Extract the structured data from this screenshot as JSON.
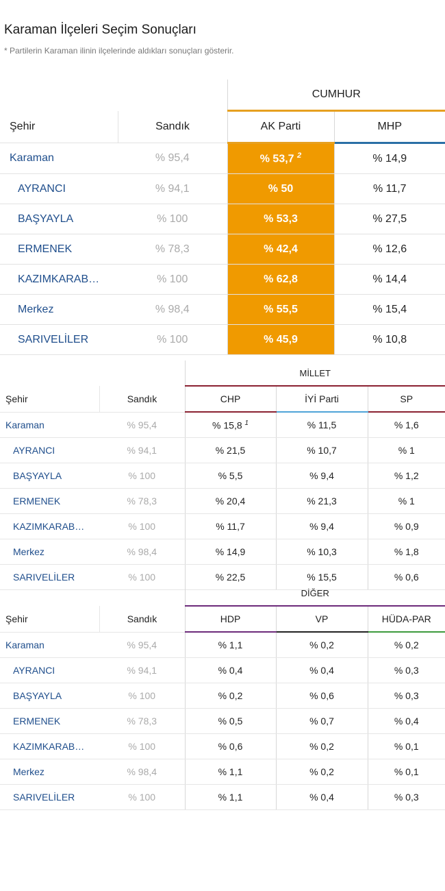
{
  "title": "Karaman İlçeleri Seçim Sonuçları",
  "subtitle": "* Partilerin Karaman ilinin ilçelerinde aldıkları sonuçları gösterir.",
  "colors": {
    "cumhur": "#e6a020",
    "akparti_bg": "#f09a00",
    "mhp": "#2a6fa6",
    "millet": "#8a2131",
    "chp": "#8a2131",
    "iyi": "#4ea3d8",
    "sp": "#8a2131",
    "diger": "#6c2a7a",
    "hdp": "#6c2a7a",
    "vp": "#222222",
    "hudapar": "#3c9a3c"
  },
  "rows": [
    {
      "city": "Karaman",
      "box": "% 95,4"
    },
    {
      "city": "AYRANCI",
      "box": "% 94,1"
    },
    {
      "city": "BAŞYAYLA",
      "box": "% 100"
    },
    {
      "city": "ERMENEK",
      "box": "% 78,3"
    },
    {
      "city": "KAZIMKARAB…",
      "box": "% 100"
    },
    {
      "city": "Merkez",
      "box": "% 98,4"
    },
    {
      "city": "SARIVELİLER",
      "box": "% 100"
    }
  ],
  "table1": {
    "group": "CUMHUR",
    "col_city": "Şehir",
    "col_box": "Sandık",
    "parties": [
      "AK Parti",
      "MHP"
    ],
    "values": [
      [
        "% 53,7",
        "% 14,9"
      ],
      [
        "% 50",
        "% 11,7"
      ],
      [
        "% 53,3",
        "% 27,5"
      ],
      [
        "% 42,4",
        "% 12,6"
      ],
      [
        "% 62,8",
        "% 14,4"
      ],
      [
        "% 55,5",
        "% 15,4"
      ],
      [
        "% 45,9",
        "% 10,8"
      ]
    ],
    "footnote": "2"
  },
  "table2": {
    "group": "MİLLET",
    "col_city": "Şehir",
    "col_box": "Sandık",
    "parties": [
      "CHP",
      "İYİ Parti",
      "SP"
    ],
    "values": [
      [
        "% 15,8",
        "% 11,5",
        "% 1,6"
      ],
      [
        "% 21,5",
        "% 10,7",
        "% 1"
      ],
      [
        "% 5,5",
        "% 9,4",
        "% 1,2"
      ],
      [
        "% 20,4",
        "% 21,3",
        "% 1"
      ],
      [
        "% 11,7",
        "% 9,4",
        "% 0,9"
      ],
      [
        "% 14,9",
        "% 10,3",
        "% 1,8"
      ],
      [
        "% 22,5",
        "% 15,5",
        "% 0,6"
      ]
    ],
    "footnote": "1"
  },
  "table3": {
    "group": "DİĞER",
    "col_city": "Şehir",
    "col_box": "Sandık",
    "parties": [
      "HDP",
      "VP",
      "HÜDA-PAR"
    ],
    "values": [
      [
        "% 1,1",
        "% 0,2",
        "% 0,2"
      ],
      [
        "% 0,4",
        "% 0,4",
        "% 0,3"
      ],
      [
        "% 0,2",
        "% 0,6",
        "% 0,3"
      ],
      [
        "% 0,5",
        "% 0,7",
        "% 0,4"
      ],
      [
        "% 0,6",
        "% 0,2",
        "% 0,1"
      ],
      [
        "% 1,1",
        "% 0,2",
        "% 0,1"
      ],
      [
        "% 1,1",
        "% 0,4",
        "% 0,3"
      ]
    ]
  }
}
